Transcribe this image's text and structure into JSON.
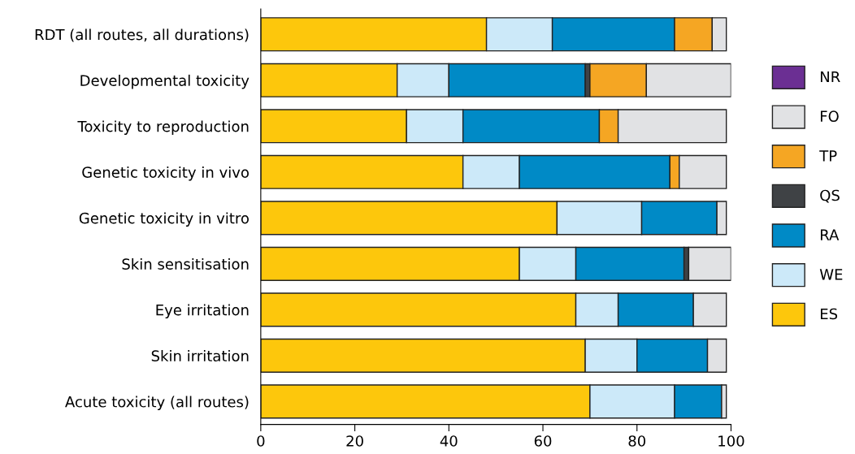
{
  "chart_data": {
    "type": "bar",
    "orientation": "horizontal",
    "stacked": true,
    "legend": "right",
    "grid": false,
    "categories": [
      "RDT (all routes, all durations)",
      "Developmental toxicity",
      "Toxicity to reproduction",
      "Genetic toxicity in vivo",
      "Genetic toxicity in vitro",
      "Skin sensitisation",
      "Eye irritation",
      "Skin irritation",
      "Acute toxicity (all routes)"
    ],
    "xlim": [
      0,
      100
    ],
    "xticks": [
      0,
      20,
      40,
      60,
      80,
      100
    ],
    "series": [
      {
        "name": "ES",
        "color": "#fdc70c",
        "values": [
          48,
          29,
          31,
          43,
          63,
          55,
          67,
          69,
          70
        ]
      },
      {
        "name": "WE",
        "color": "#cce9f9",
        "values": [
          14,
          11,
          12,
          12,
          18,
          12,
          9,
          11,
          18
        ]
      },
      {
        "name": "RA",
        "color": "#008ac6",
        "values": [
          26,
          29,
          29,
          32,
          16,
          23,
          16,
          15,
          10
        ]
      },
      {
        "name": "QS",
        "color": "#3f4245",
        "values": [
          0,
          1,
          0,
          0,
          0,
          1,
          0,
          0,
          0
        ]
      },
      {
        "name": "TP",
        "color": "#f5a623",
        "values": [
          8,
          12,
          4,
          2,
          0,
          0,
          0,
          0,
          0
        ]
      },
      {
        "name": "FO",
        "color": "#e1e2e4",
        "values": [
          3,
          18,
          23,
          10,
          2,
          9,
          7,
          4,
          1
        ]
      },
      {
        "name": "NR",
        "color": "#6b2f93",
        "values": [
          0,
          0,
          0,
          0,
          0,
          0,
          0,
          0,
          0
        ]
      }
    ]
  }
}
